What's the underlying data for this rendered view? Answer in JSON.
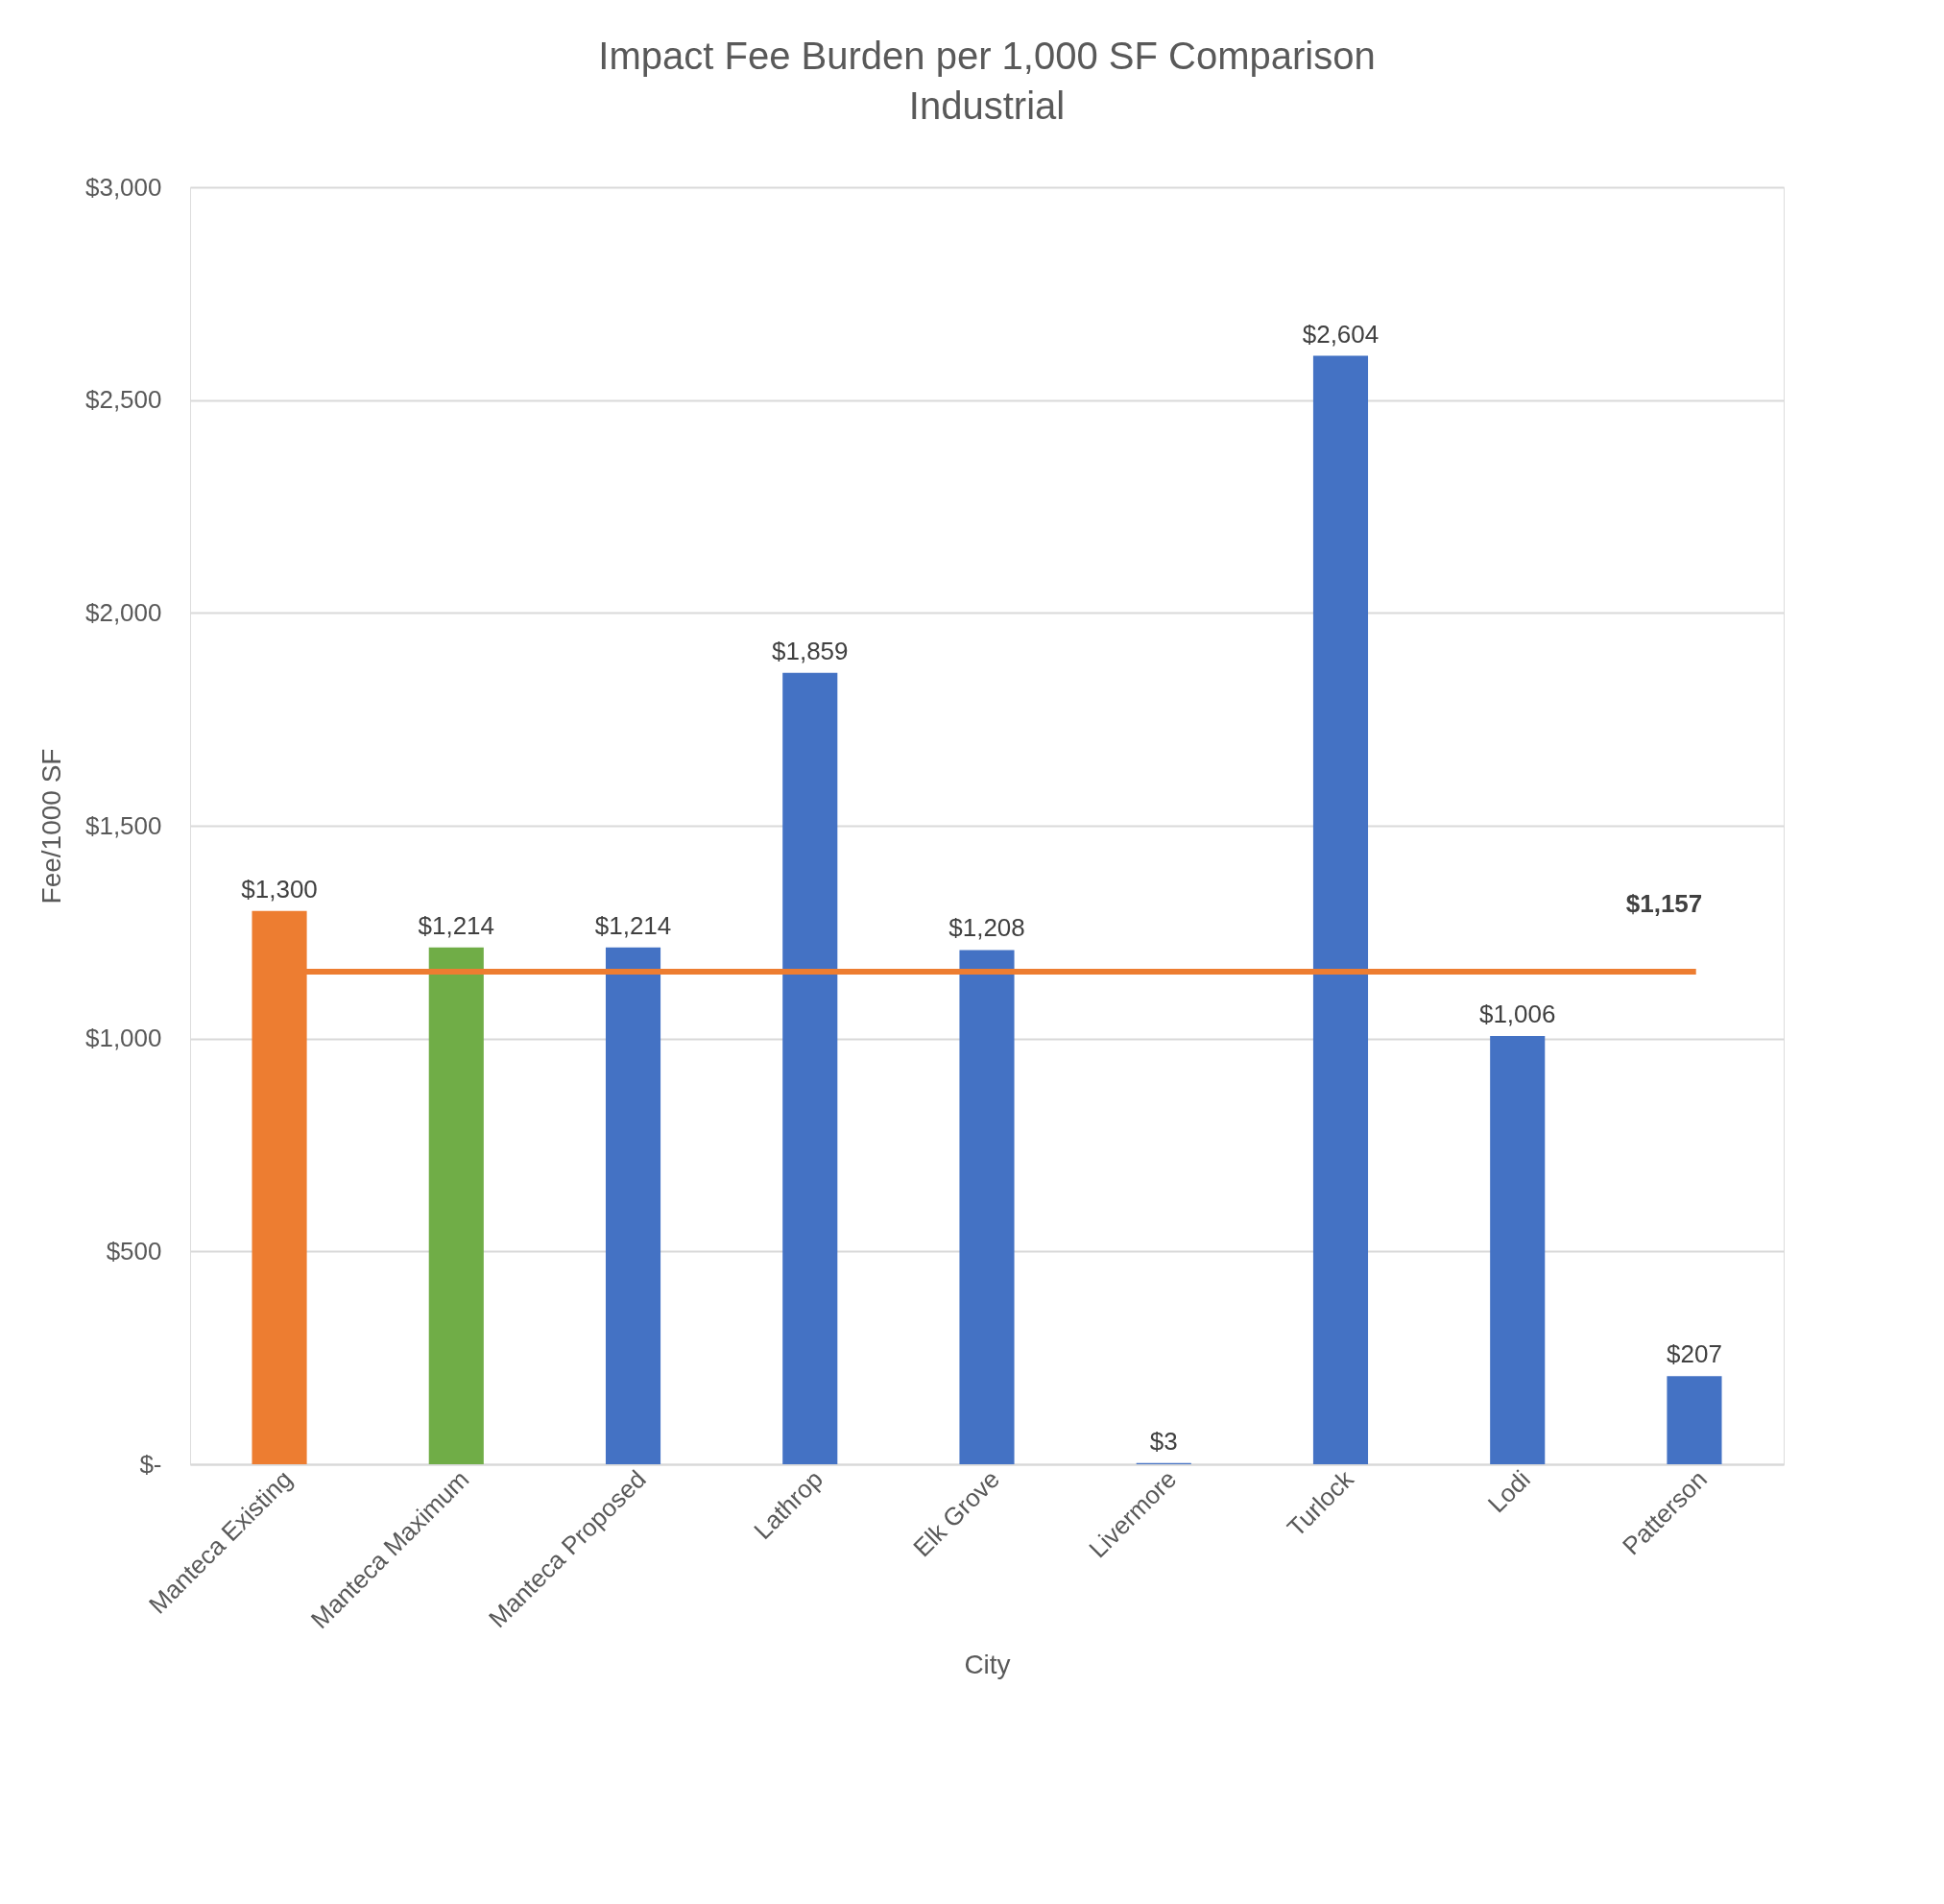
{
  "chart_data": {
    "type": "bar",
    "title": "Impact Fee Burden per 1,000 SF Comparison",
    "subtitle": "Industrial",
    "xlabel": "City",
    "ylabel": "Fee/1000 SF",
    "categories": [
      "Manteca Existing",
      "Manteca Maximum",
      "Manteca Proposed",
      "Lathrop",
      "Elk Grove",
      "Livermore",
      "Turlock",
      "Lodi",
      "Patterson"
    ],
    "values": [
      1300,
      1214,
      1214,
      1859,
      1208,
      3,
      2604,
      1006,
      207
    ],
    "colors": [
      "#ed7d31",
      "#70ad47",
      "#4472c4",
      "#4472c4",
      "#4472c4",
      "#4472c4",
      "#4472c4",
      "#4472c4",
      "#4472c4"
    ],
    "ylim": [
      0,
      3000
    ],
    "yticks": [
      {
        "value": 0,
        "label": "$-"
      },
      {
        "value": 500,
        "label": "$500"
      },
      {
        "value": 1000,
        "label": "$1,000"
      },
      {
        "value": 1500,
        "label": "$1,500"
      },
      {
        "value": 2000,
        "label": "$2,000"
      },
      {
        "value": 2500,
        "label": "$2,500"
      },
      {
        "value": 3000,
        "label": "$3,000"
      }
    ],
    "value_labels": [
      "$1,300",
      "$1,214",
      "$1,214",
      "$1,859",
      "$1,208",
      "$3",
      "$2,604",
      "$1,006",
      "$207"
    ],
    "grid": "y",
    "ref_lines": [
      {
        "axis": "y",
        "value": 1157,
        "label": "$1,157",
        "color": "#ed7d31"
      }
    ]
  }
}
